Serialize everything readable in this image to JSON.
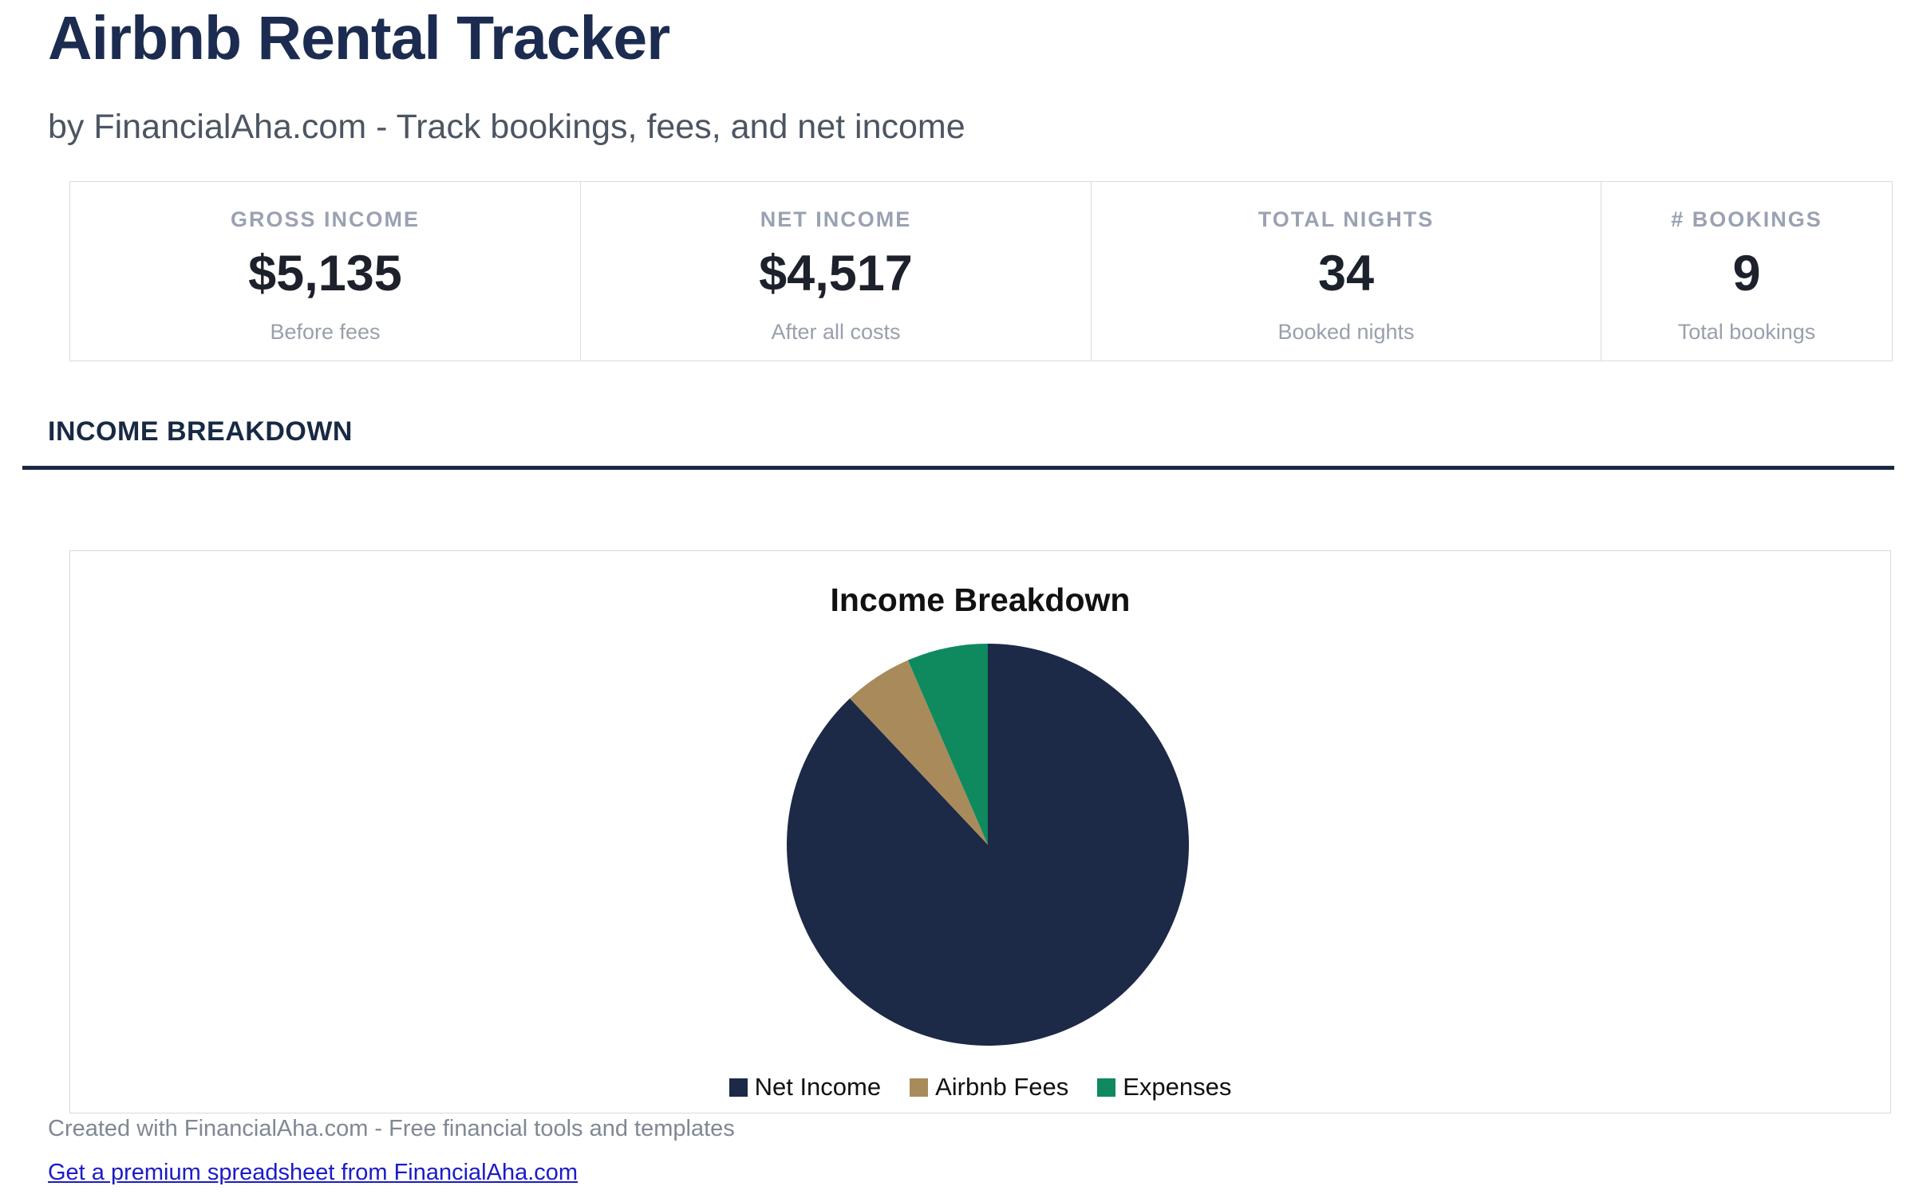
{
  "header": {
    "title": "Airbnb Rental Tracker",
    "subtitle": "by FinancialAha.com - Track bookings, fees, and net income"
  },
  "stats": [
    {
      "label": "GROSS INCOME",
      "value": "$5,135",
      "sub": "Before fees"
    },
    {
      "label": "NET INCOME",
      "value": "$4,517",
      "sub": "After all costs"
    },
    {
      "label": "TOTAL NIGHTS",
      "value": "34",
      "sub": "Booked nights"
    },
    {
      "label": "# BOOKINGS",
      "value": "9",
      "sub": "Total bookings"
    }
  ],
  "section": {
    "title": "INCOME BREAKDOWN"
  },
  "chart_data": {
    "type": "pie",
    "title": "Income Breakdown",
    "series": [
      {
        "label": "Net Income",
        "value": 4517,
        "color": "#1c2947"
      },
      {
        "label": "Airbnb Fees",
        "value": 284,
        "color": "#a98b5b"
      },
      {
        "label": "Expenses",
        "value": 334,
        "color": "#0f8a5e"
      }
    ],
    "total": 5135,
    "start_angle_deg": 0,
    "direction": "clockwise",
    "legend_position": "bottom"
  },
  "footer": {
    "credit": "Created with FinancialAha.com - Free financial tools and templates",
    "link_text": "Get a premium spreadsheet from FinancialAha.com"
  },
  "colors": {
    "title_navy": "#1c2b50",
    "section_navy": "#182944",
    "stat_label_gray": "#9aa2b2",
    "stat_value_dark": "#1d212b",
    "subtitle_gray": "#4c5562",
    "footer_gray": "#7f8893",
    "link_blue": "#1b1bc8",
    "panel_border": "#d9d9d9"
  }
}
